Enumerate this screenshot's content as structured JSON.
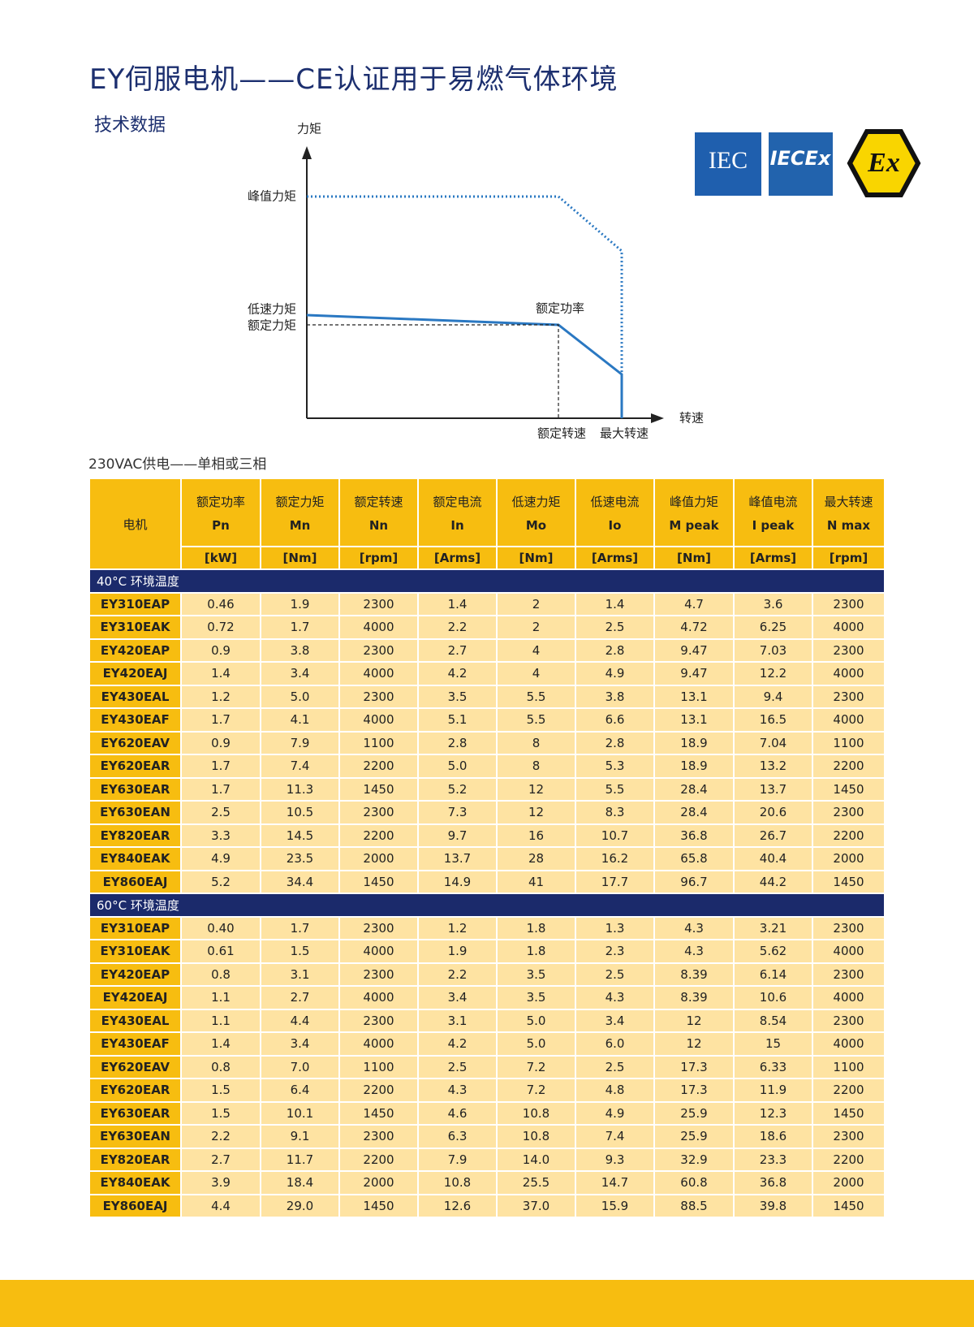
{
  "header": {
    "title": "EY伺服电机——CE认证用于易燃气体环境",
    "subtitle": "技术数据"
  },
  "diagram": {
    "y_axis": "力矩",
    "x_axis": "转速",
    "peak_torque": "峰值力矩",
    "low_speed_torque": "低速力矩",
    "rated_torque": "额定力矩",
    "rated_power": "额定功率",
    "rated_speed": "额定转速",
    "max_speed": "最大转速"
  },
  "logos": {
    "iec": "IEC",
    "iecex": "IECEx",
    "ex": "Ex"
  },
  "table": {
    "caption": "230VAC供电——单相或三相",
    "motor_header": "电机",
    "columns": [
      {
        "name": "额定功率",
        "symbol": "Pn",
        "unit": "[kW]"
      },
      {
        "name": "额定力矩",
        "symbol": "Mn",
        "unit": "[Nm]"
      },
      {
        "name": "额定转速",
        "symbol": "Nn",
        "unit": "[rpm]"
      },
      {
        "name": "额定电流",
        "symbol": "In",
        "unit": "[Arms]"
      },
      {
        "name": "低速力矩",
        "symbol": "Mo",
        "unit": "[Nm]"
      },
      {
        "name": "低速电流",
        "symbol": "Io",
        "unit": "[Arms]"
      },
      {
        "name": "峰值力矩",
        "symbol": "M peak",
        "unit": "[Nm]"
      },
      {
        "name": "峰值电流",
        "symbol": "I peak",
        "unit": "[Arms]"
      },
      {
        "name": "最大转速",
        "symbol": "N max",
        "unit": "[rpm]"
      }
    ],
    "sections": [
      {
        "label": "40°C 环境温度",
        "rows": [
          [
            "EY310EAP",
            "0.46",
            "1.9",
            "2300",
            "1.4",
            "2",
            "1.4",
            "4.7",
            "3.6",
            "2300"
          ],
          [
            "EY310EAK",
            "0.72",
            "1.7",
            "4000",
            "2.2",
            "2",
            "2.5",
            "4.72",
            "6.25",
            "4000"
          ],
          [
            "EY420EAP",
            "0.9",
            "3.8",
            "2300",
            "2.7",
            "4",
            "2.8",
            "9.47",
            "7.03",
            "2300"
          ],
          [
            "EY420EAJ",
            "1.4",
            "3.4",
            "4000",
            "4.2",
            "4",
            "4.9",
            "9.47",
            "12.2",
            "4000"
          ],
          [
            "EY430EAL",
            "1.2",
            "5.0",
            "2300",
            "3.5",
            "5.5",
            "3.8",
            "13.1",
            "9.4",
            "2300"
          ],
          [
            "EY430EAF",
            "1.7",
            "4.1",
            "4000",
            "5.1",
            "5.5",
            "6.6",
            "13.1",
            "16.5",
            "4000"
          ],
          [
            "EY620EAV",
            "0.9",
            "7.9",
            "1100",
            "2.8",
            "8",
            "2.8",
            "18.9",
            "7.04",
            "1100"
          ],
          [
            "EY620EAR",
            "1.7",
            "7.4",
            "2200",
            "5.0",
            "8",
            "5.3",
            "18.9",
            "13.2",
            "2200"
          ],
          [
            "EY630EAR",
            "1.7",
            "11.3",
            "1450",
            "5.2",
            "12",
            "5.5",
            "28.4",
            "13.7",
            "1450"
          ],
          [
            "EY630EAN",
            "2.5",
            "10.5",
            "2300",
            "7.3",
            "12",
            "8.3",
            "28.4",
            "20.6",
            "2300"
          ],
          [
            "EY820EAR",
            "3.3",
            "14.5",
            "2200",
            "9.7",
            "16",
            "10.7",
            "36.8",
            "26.7",
            "2200"
          ],
          [
            "EY840EAK",
            "4.9",
            "23.5",
            "2000",
            "13.7",
            "28",
            "16.2",
            "65.8",
            "40.4",
            "2000"
          ],
          [
            "EY860EAJ",
            "5.2",
            "34.4",
            "1450",
            "14.9",
            "41",
            "17.7",
            "96.7",
            "44.2",
            "1450"
          ]
        ]
      },
      {
        "label": "60°C 环境温度",
        "rows": [
          [
            "EY310EAP",
            "0.40",
            "1.7",
            "2300",
            "1.2",
            "1.8",
            "1.3",
            "4.3",
            "3.21",
            "2300"
          ],
          [
            "EY310EAK",
            "0.61",
            "1.5",
            "4000",
            "1.9",
            "1.8",
            "2.3",
            "4.3",
            "5.62",
            "4000"
          ],
          [
            "EY420EAP",
            "0.8",
            "3.1",
            "2300",
            "2.2",
            "3.5",
            "2.5",
            "8.39",
            "6.14",
            "2300"
          ],
          [
            "EY420EAJ",
            "1.1",
            "2.7",
            "4000",
            "3.4",
            "3.5",
            "4.3",
            "8.39",
            "10.6",
            "4000"
          ],
          [
            "EY430EAL",
            "1.1",
            "4.4",
            "2300",
            "3.1",
            "5.0",
            "3.4",
            "12",
            "8.54",
            "2300"
          ],
          [
            "EY430EAF",
            "1.4",
            "3.4",
            "4000",
            "4.2",
            "5.0",
            "6.0",
            "12",
            "15",
            "4000"
          ],
          [
            "EY620EAV",
            "0.8",
            "7.0",
            "1100",
            "2.5",
            "7.2",
            "2.5",
            "17.3",
            "6.33",
            "1100"
          ],
          [
            "EY620EAR",
            "1.5",
            "6.4",
            "2200",
            "4.3",
            "7.2",
            "4.8",
            "17.3",
            "11.9",
            "2200"
          ],
          [
            "EY630EAR",
            "1.5",
            "10.1",
            "1450",
            "4.6",
            "10.8",
            "4.9",
            "25.9",
            "12.3",
            "1450"
          ],
          [
            "EY630EAN",
            "2.2",
            "9.1",
            "2300",
            "6.3",
            "10.8",
            "7.4",
            "25.9",
            "18.6",
            "2300"
          ],
          [
            "EY820EAR",
            "2.7",
            "11.7",
            "2200",
            "7.9",
            "14.0",
            "9.3",
            "32.9",
            "23.3",
            "2200"
          ],
          [
            "EY840EAK",
            "3.9",
            "18.4",
            "2000",
            "10.8",
            "25.5",
            "14.7",
            "60.8",
            "36.8",
            "2000"
          ],
          [
            "EY860EAJ",
            "4.4",
            "29.0",
            "1450",
            "12.6",
            "37.0",
            "15.9",
            "88.5",
            "39.8",
            "1450"
          ]
        ]
      }
    ]
  }
}
